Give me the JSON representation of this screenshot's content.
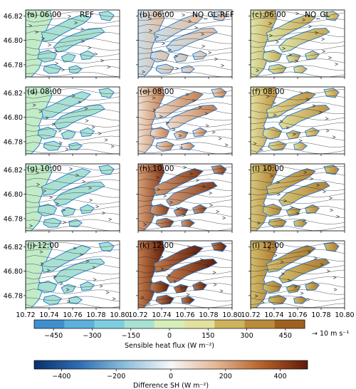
{
  "chart_data": {
    "type": "heatmap",
    "panels": [
      {
        "label": "(a) 06:00",
        "suffix": "REF",
        "field": "REF",
        "hour": 6,
        "level": 0.18
      },
      {
        "label": "(b) 06:00",
        "suffix": "NO_GL-REF",
        "field": "DIFF",
        "hour": 6,
        "level": 0.22
      },
      {
        "label": "(c) 06:00",
        "suffix": "NO_GL",
        "field": "NO_GL",
        "hour": 6,
        "level": 0.45
      },
      {
        "label": "(d) 08:00",
        "suffix": "",
        "field": "REF",
        "hour": 8,
        "level": 0.18
      },
      {
        "label": "(e) 08:00",
        "suffix": "",
        "field": "DIFF",
        "hour": 8,
        "level": 0.48
      },
      {
        "label": "(f) 08:00",
        "suffix": "",
        "field": "NO_GL",
        "hour": 8,
        "level": 0.58
      },
      {
        "label": "(g) 10:00",
        "suffix": "",
        "field": "REF",
        "hour": 10,
        "level": 0.18
      },
      {
        "label": "(h) 10:00",
        "suffix": "",
        "field": "DIFF",
        "hour": 10,
        "level": 0.78
      },
      {
        "label": "(i) 10:00",
        "suffix": "",
        "field": "NO_GL",
        "hour": 10,
        "level": 0.72
      },
      {
        "label": "(j) 12:00",
        "suffix": "",
        "field": "REF",
        "hour": 12,
        "level": 0.18
      },
      {
        "label": "(k) 12:00",
        "suffix": "",
        "field": "DIFF",
        "hour": 12,
        "level": 0.92
      },
      {
        "label": "(l) 12:00",
        "suffix": "",
        "field": "NO_GL",
        "hour": 12,
        "level": 0.78
      }
    ],
    "xticks": [
      "10.72",
      "10.74",
      "10.76",
      "10.78",
      "10.80"
    ],
    "yticks": [
      "46.82",
      "46.80",
      "46.78"
    ],
    "xlim": [
      10.72,
      10.8
    ],
    "ylim": [
      46.77,
      46.825
    ],
    "colorbar_sh": {
      "label": "Sensible heat flux (W m⁻²)",
      "ticks": [
        "−450",
        "−300",
        "−150",
        "0",
        "150",
        "300",
        "450"
      ],
      "range": [
        -525,
        525
      ],
      "colors": [
        "#3f8fcf",
        "#5cb0dc",
        "#7dcfe0",
        "#a8e2d2",
        "#d6efb8",
        "#e3e1a0",
        "#cdb35c",
        "#b98b3a",
        "#9f6120"
      ],
      "reference_vector": "→  10 m s⁻¹"
    },
    "colorbar_diff": {
      "label": "Difference SH (W m⁻²)",
      "ticks": [
        "−400",
        "−200",
        "0",
        "200",
        "400"
      ],
      "range": [
        -500,
        500
      ],
      "colors": [
        "#08306b",
        "#2f6eb3",
        "#8dbfdc",
        "#f7f7f7",
        "#e3b693",
        "#b5622a",
        "#5f1a07"
      ]
    },
    "colors": {
      "glacier_outline": "#1f78d1",
      "streamline": "#222222",
      "ref_fill": "#a9e0d2",
      "ref_fill_west": "#c2ebc8"
    }
  }
}
